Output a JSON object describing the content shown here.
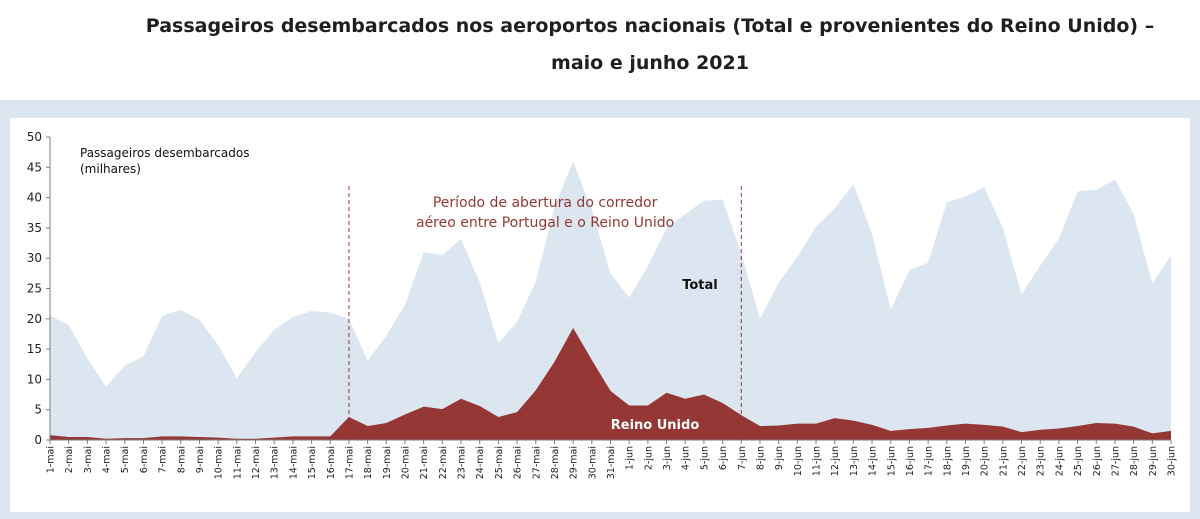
{
  "title": "Passageiros desembarcados nos aeroportos nacionais (Total e provenientes do Reino Unido) – maio e junho 2021",
  "colors": {
    "total": "#dce6f1",
    "uk": "#953735",
    "annotation": "#953735",
    "band": "#dce6f1"
  },
  "chart_data": {
    "type": "area",
    "ylabel": "Passageiros desembarcados (milhares)",
    "ylabel_lines": [
      "Passageiros desembarcados",
      "(milhares)"
    ],
    "ylim": [
      0,
      50
    ],
    "yticks": [
      0,
      5,
      10,
      15,
      20,
      25,
      30,
      35,
      40,
      45,
      50
    ],
    "categories": [
      "1-mai",
      "2-mai",
      "3-mai",
      "4-mai",
      "5-mai",
      "6-mai",
      "7-mai",
      "8-mai",
      "9-mai",
      "10-mai",
      "11-mai",
      "12-mai",
      "13-mai",
      "14-mai",
      "15-mai",
      "16-mai",
      "17-mai",
      "18-mai",
      "19-mai",
      "20-mai",
      "21-mai",
      "22-mai",
      "23-mai",
      "24-mai",
      "25-mai",
      "26-mai",
      "27-mai",
      "28-mai",
      "29-mai",
      "30-mai",
      "31-mai",
      "1-jun",
      "2-jun",
      "3-jun",
      "4-jun",
      "5-jun",
      "6-jun",
      "7-jun",
      "8-jun",
      "9-jun",
      "10-jun",
      "11-jun",
      "12-jun",
      "13-jun",
      "14-jun",
      "15-jun",
      "16-jun",
      "17-jun",
      "18-jun",
      "19-jun",
      "20-jun",
      "21-jun",
      "22-jun",
      "23-jun",
      "24-jun",
      "25-jun",
      "26-jun",
      "27-jun",
      "28-jun",
      "29-jun",
      "30-jun"
    ],
    "series": [
      {
        "name": "Total",
        "values": [
          20.5,
          19.0,
          13.5,
          8.8,
          12.3,
          13.8,
          20.5,
          21.5,
          19.8,
          15.7,
          10.2,
          14.5,
          18.2,
          20.3,
          21.3,
          21.0,
          20.0,
          13.1,
          17.2,
          22.3,
          31.0,
          30.5,
          33.2,
          26.0,
          16.0,
          19.5,
          26.2,
          38.5,
          46.0,
          38.0,
          27.5,
          23.5,
          28.7,
          35.0,
          37.3,
          39.5,
          39.7,
          30.8,
          20.0,
          26.0,
          30.2,
          35.2,
          38.2,
          42.2,
          34.0,
          21.6,
          28.0,
          29.3,
          39.2,
          40.2,
          41.7,
          35.0,
          24.0,
          28.8,
          33.2,
          41.0,
          41.3,
          43.0,
          37.3,
          25.8,
          30.5
        ]
      },
      {
        "name": "Reino Unido",
        "values": [
          0.8,
          0.5,
          0.5,
          0.2,
          0.3,
          0.3,
          0.6,
          0.6,
          0.5,
          0.4,
          0.2,
          0.2,
          0.4,
          0.6,
          0.6,
          0.6,
          3.8,
          2.3,
          2.8,
          4.2,
          5.5,
          5.1,
          6.8,
          5.6,
          3.8,
          4.6,
          8.2,
          12.9,
          18.5,
          13.2,
          8.1,
          5.7,
          5.7,
          7.8,
          6.8,
          7.5,
          6.1,
          4.1,
          2.3,
          2.4,
          2.7,
          2.7,
          3.6,
          3.2,
          2.5,
          1.5,
          1.8,
          2.0,
          2.4,
          2.7,
          2.5,
          2.2,
          1.3,
          1.7,
          1.9,
          2.3,
          2.8,
          2.7,
          2.2,
          1.1,
          1.5
        ]
      }
    ],
    "annotations": {
      "corridor_lines": [
        "17-mai",
        "7-jun"
      ],
      "corridor_text": [
        "Período de abertura do corredor",
        "aéreo entre Portugal e o Reino Unido"
      ],
      "total_label": "Total",
      "uk_label": "Reino Unido"
    }
  }
}
